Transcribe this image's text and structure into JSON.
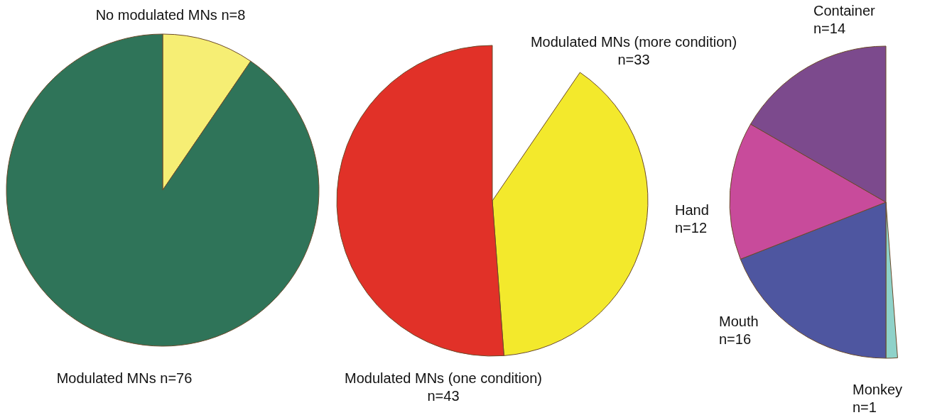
{
  "chart_data": [
    {
      "type": "pie",
      "categories": [
        "No modulated MNs n=8",
        "Modulated MNs n=76"
      ],
      "values": [
        8,
        76
      ],
      "colors": [
        "#f6ee74",
        "#2f7459"
      ]
    },
    {
      "type": "pie",
      "categories": [
        "Modulated MNs (more condition)\nn=33",
        "Modulated MNs (one condition)\nn=43"
      ],
      "values": [
        33,
        43
      ],
      "colors": [
        "#f3e92c",
        "#e13128"
      ]
    },
    {
      "type": "pie",
      "categories": [
        "Monkey\nn=1",
        "Mouth\nn=16",
        "Hand\nn=12",
        "Container\nn=14"
      ],
      "values": [
        1,
        16,
        12,
        14
      ],
      "colors": [
        "#8fd2c9",
        "#4e56a0",
        "#c84b9b",
        "#7c4a8d"
      ]
    }
  ]
}
